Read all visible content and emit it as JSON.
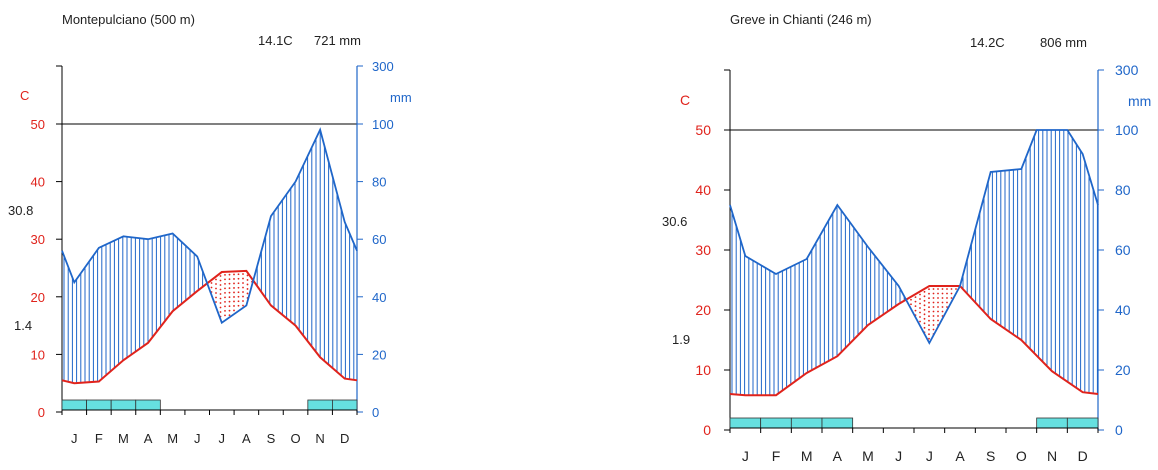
{
  "colors": {
    "temperature": "#e0231c",
    "precipitation": "#1f66c9",
    "frost": "#66e0e0",
    "axis": "#000000",
    "labels": "#222222"
  },
  "chart_data": [
    {
      "type": "climate-diagram",
      "title": "Montepulciano (500 m)",
      "mean_temp_label": "14.1C",
      "annual_precip_label": "721 mm",
      "left_unit": "C",
      "right_unit": "mm",
      "side_value_max": "30.8",
      "side_value_min": "1.4",
      "months": [
        "J",
        "F",
        "M",
        "A",
        "M",
        "J",
        "J",
        "A",
        "S",
        "O",
        "N",
        "D"
      ],
      "temp_ticks": [
        0,
        10,
        20,
        30,
        40,
        50
      ],
      "precip_ticks": [
        0,
        20,
        40,
        60,
        80,
        100,
        300
      ],
      "temperature": [
        5.5,
        5.0,
        5.3,
        9.0,
        12.0,
        17.5,
        21.0,
        24.3,
        24.5,
        18.5,
        15.0,
        9.5,
        5.8,
        5.5
      ],
      "temperature_x": [
        0,
        0.5,
        1.5,
        2.5,
        3.5,
        4.5,
        5.5,
        6.5,
        7.5,
        8.5,
        9.5,
        10.5,
        11.5,
        12
      ],
      "precipitation": [
        56,
        45,
        57,
        61,
        60,
        62,
        54,
        31,
        37,
        68,
        80,
        98,
        66,
        56
      ],
      "precipitation_x": [
        0,
        0.5,
        1.5,
        2.5,
        3.5,
        4.5,
        5.5,
        6.5,
        7.5,
        8.5,
        9.5,
        10.5,
        11.5,
        12
      ],
      "frost_months": [
        1,
        1,
        1,
        1,
        0,
        0,
        0,
        0,
        0,
        0,
        1,
        1
      ]
    },
    {
      "type": "climate-diagram",
      "title": "Greve in Chianti (246 m)",
      "mean_temp_label": "14.2C",
      "annual_precip_label": "806 mm",
      "left_unit": "C",
      "right_unit": "mm",
      "side_value_max": "30.6",
      "side_value_min": "1.9",
      "months": [
        "J",
        "F",
        "M",
        "A",
        "M",
        "J",
        "J",
        "A",
        "S",
        "O",
        "N",
        "D"
      ],
      "temp_ticks": [
        0,
        10,
        20,
        30,
        40,
        50
      ],
      "precip_ticks": [
        0,
        20,
        40,
        60,
        80,
        100,
        300
      ],
      "temperature": [
        6.0,
        5.8,
        5.8,
        9.5,
        12.3,
        17.5,
        21.0,
        24.0,
        24.0,
        18.5,
        15.0,
        9.8,
        6.3,
        6.0
      ],
      "temperature_x": [
        0,
        0.5,
        1.5,
        2.5,
        3.5,
        4.5,
        5.5,
        6.5,
        7.5,
        8.5,
        9.5,
        10.5,
        11.5,
        12
      ],
      "precipitation": [
        75,
        58,
        52,
        57,
        75,
        61,
        48,
        29,
        48,
        86,
        87,
        100,
        101,
        100,
        92,
        75
      ],
      "precipitation_x": [
        0,
        0.5,
        1.5,
        2.5,
        3.5,
        4.5,
        5.5,
        6.5,
        7.5,
        8.5,
        9.5,
        10.0,
        10.5,
        11.0,
        11.5,
        12
      ],
      "frost_months": [
        1,
        1,
        1,
        1,
        0,
        0,
        0,
        0,
        0,
        0,
        1,
        1
      ]
    }
  ]
}
